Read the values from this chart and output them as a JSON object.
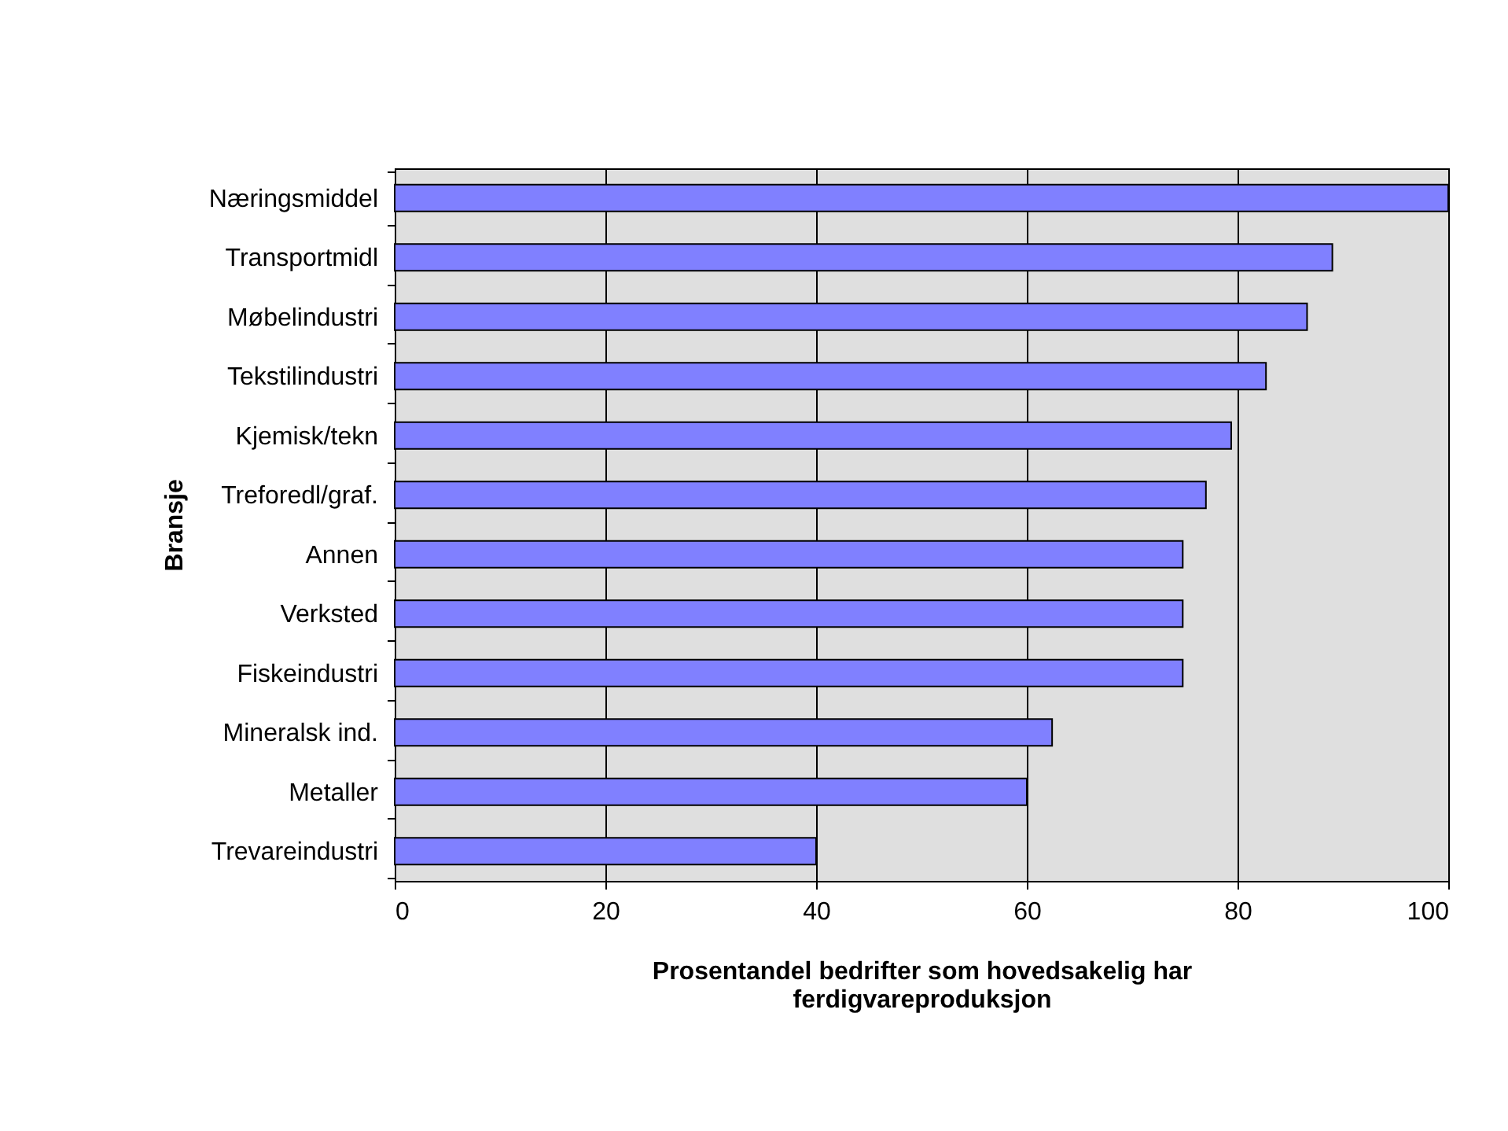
{
  "chart_data": {
    "type": "bar",
    "orientation": "horizontal",
    "xlabel": "Prosentandel bedrifter som hovedsakelig har ferdigvareproduksjon",
    "ylabel": "Bransje",
    "categories": [
      "Næringsmiddel",
      "Transportmidl",
      "Møbelindustri",
      "Tekstilindustri",
      "Kjemisk/tekn",
      "Treforedl/graf.",
      "Annen",
      "Verksted",
      "Fiskeindustri",
      "Mineralsk ind.",
      "Metaller",
      "Trevareindustri"
    ],
    "values": [
      100,
      89,
      86.6,
      82.7,
      79.4,
      77,
      74.8,
      74.8,
      74.8,
      62.4,
      60,
      40
    ],
    "color": "#8080ff",
    "xlim": [
      0,
      100
    ],
    "xticks": [
      0,
      20,
      40,
      60,
      80,
      100
    ],
    "grid": "x"
  }
}
